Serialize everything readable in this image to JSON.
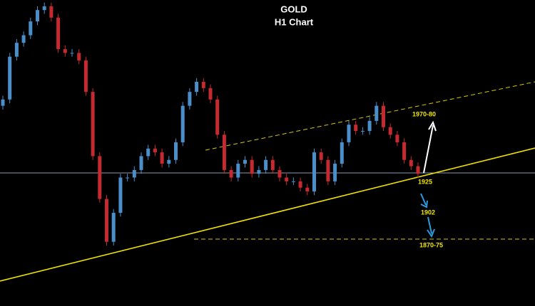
{
  "chart_data": {
    "type": "candlestick",
    "title": "GOLD",
    "subtitle": "H1 Chart",
    "open": [
      1978,
      1983,
      2017,
      2028,
      2034,
      2045,
      2054,
      2057,
      2048,
      2023,
      2020,
      2020,
      2014,
      1989,
      1938,
      1904,
      1870,
      1893,
      1921,
      1921,
      1927,
      1938,
      1944,
      1941,
      1932,
      1935,
      1949,
      1978,
      1989,
      1997,
      1992,
      1983,
      1955,
      1927,
      1921,
      1932,
      1935,
      1924,
      1927,
      1935,
      1927,
      1921,
      1918,
      1918,
      1913,
      1910,
      1941,
      1935,
      1918,
      1932,
      1949,
      1963,
      1958,
      1958,
      1966,
      1978,
      1961,
      1955,
      1949,
      1935,
      1930
    ],
    "high": [
      1986,
      2020,
      2031,
      2037,
      2048,
      2057,
      2060,
      2060,
      2051,
      2026,
      2023,
      2023,
      2017,
      1992,
      1941,
      1907,
      1896,
      1924,
      1924,
      1930,
      1941,
      1947,
      1947,
      1944,
      1938,
      1952,
      1981,
      1992,
      2000,
      2000,
      1995,
      1986,
      1958,
      1930,
      1935,
      1938,
      1938,
      1930,
      1938,
      1938,
      1930,
      1924,
      1921,
      1921,
      1916,
      1944,
      1944,
      1938,
      1935,
      1952,
      1966,
      1966,
      1961,
      1969,
      1981,
      1981,
      1964,
      1958,
      1952,
      1938,
      1933
    ],
    "low": [
      1975,
      1980,
      2014,
      2025,
      2031,
      2042,
      2051,
      2045,
      2020,
      2017,
      2017,
      2011,
      1986,
      1935,
      1901,
      1867,
      1867,
      1890,
      1918,
      1918,
      1924,
      1935,
      1938,
      1929,
      1929,
      1932,
      1946,
      1975,
      1986,
      1989,
      1980,
      1952,
      1924,
      1918,
      1918,
      1929,
      1921,
      1921,
      1924,
      1924,
      1918,
      1915,
      1915,
      1910,
      1907,
      1907,
      1932,
      1915,
      1915,
      1929,
      1946,
      1955,
      1955,
      1955,
      1963,
      1958,
      1952,
      1946,
      1932,
      1927,
      1921
    ],
    "close": [
      1983,
      2017,
      2028,
      2034,
      2045,
      2054,
      2057,
      2048,
      2023,
      2020,
      2020,
      2014,
      1989,
      1938,
      1904,
      1870,
      1893,
      1921,
      1921,
      1927,
      1938,
      1944,
      1941,
      1932,
      1935,
      1949,
      1978,
      1989,
      1997,
      1992,
      1983,
      1955,
      1927,
      1921,
      1932,
      1935,
      1924,
      1927,
      1935,
      1927,
      1921,
      1918,
      1918,
      1913,
      1910,
      1941,
      1935,
      1918,
      1932,
      1949,
      1963,
      1958,
      1958,
      1966,
      1978,
      1961,
      1955,
      1949,
      1935,
      1930,
      1924
    ],
    "up_color": "#4a8fc9",
    "down_color": "#c42a2f",
    "ylim": [
      1819,
      2062
    ],
    "annotations": [
      "1970-80",
      "1925",
      "1902",
      "1870-75"
    ]
  }
}
